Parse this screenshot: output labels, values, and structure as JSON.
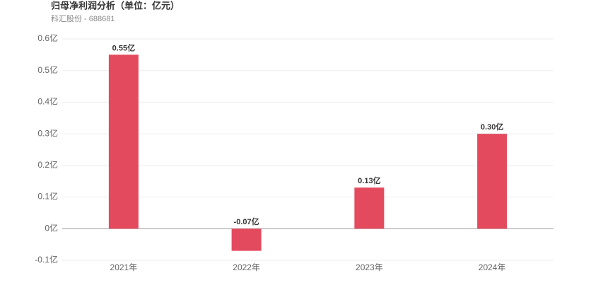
{
  "chart_data": {
    "type": "bar",
    "title": "归母净利润分析（单位：亿元）",
    "subtitle": "科汇股份 - 688681",
    "categories": [
      "2021年",
      "2022年",
      "2023年",
      "2024年"
    ],
    "values": [
      0.55,
      -0.07,
      0.13,
      0.3
    ],
    "value_labels": [
      "0.55亿",
      "-0.07亿",
      "0.13亿",
      "0.30亿"
    ],
    "color": "#e34a5e",
    "ylim": [
      -0.1,
      0.6
    ],
    "yticks": [
      {
        "value": -0.1,
        "label": "-0.1亿"
      },
      {
        "value": 0,
        "label": "0亿"
      },
      {
        "value": 0.1,
        "label": "0.1亿"
      },
      {
        "value": 0.2,
        "label": "0.2亿"
      },
      {
        "value": 0.3,
        "label": "0.3亿"
      },
      {
        "value": 0.4,
        "label": "0.4亿"
      },
      {
        "value": 0.5,
        "label": "0.5亿"
      },
      {
        "value": 0.6,
        "label": "0.6亿"
      }
    ],
    "grid": true
  }
}
